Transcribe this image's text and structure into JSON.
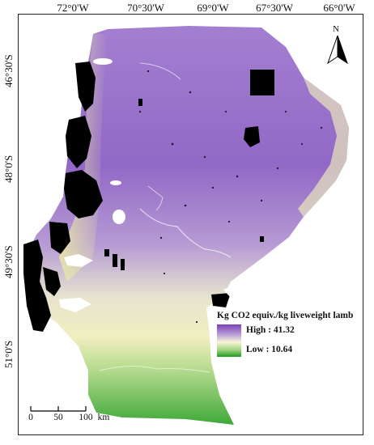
{
  "longitude_labels": [
    "72°0'W",
    "70°30'W",
    "69°0'W",
    "67°30'W",
    "66°0'W"
  ],
  "latitude_labels": [
    "46°30'S",
    "48°0'S",
    "49°30'S",
    "51°0'S"
  ],
  "legend": {
    "title": "Kg CO2 equiv./kg liveweight lamb",
    "high_label": "High : 41.32",
    "low_label": "Low : 10.64",
    "high_value": 41.32,
    "low_value": 10.64,
    "color_high": "#7b3fb8",
    "color_mid": "#f7f5d8",
    "color_low": "#1f9a1f"
  },
  "north_arrow": {
    "letter": "N",
    "icon": "north-arrow-icon"
  },
  "scale_bar": {
    "ticks": [
      "0",
      "50",
      "100"
    ],
    "unit": "km",
    "tick_values": [
      0,
      50,
      100
    ]
  },
  "colors": {
    "masked": "#000000",
    "water": "#ffffff"
  }
}
